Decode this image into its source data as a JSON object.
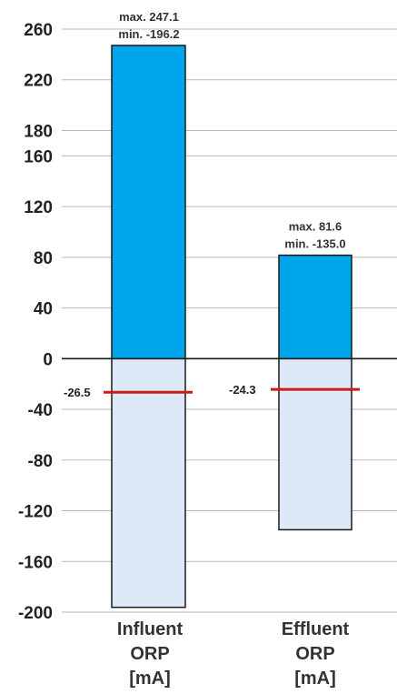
{
  "chart_data": {
    "type": "bar",
    "categories": [
      [
        "Influent",
        "ORP",
        "[mA]"
      ],
      [
        "Effluent",
        "ORP",
        "[mA]"
      ]
    ],
    "series": [
      {
        "values": [
          {
            "max": 247.1,
            "min": -196.2,
            "mean": -26.5,
            "max_label": "max. 247.1",
            "min_label": "min. -196.2",
            "mean_label": "-26.5"
          },
          {
            "max": 81.6,
            "min": -135.0,
            "mean": -24.3,
            "max_label": "max.   81.6",
            "min_label": "min. -135.0",
            "mean_label": "-24.3"
          }
        ]
      }
    ],
    "yticks": [
      "260",
      "220",
      "180",
      "160",
      "120",
      "80",
      "40",
      "0",
      "-40",
      "-80",
      "-120",
      "-160",
      "-200"
    ],
    "ylim": [
      -200,
      260
    ],
    "grid": true,
    "colors": {
      "positive": "#00a6ec",
      "negative": "#dde9f6",
      "mean_line": "#c81c1c",
      "grid": "#b8b8b8",
      "outline": "#1a1a1a"
    }
  }
}
